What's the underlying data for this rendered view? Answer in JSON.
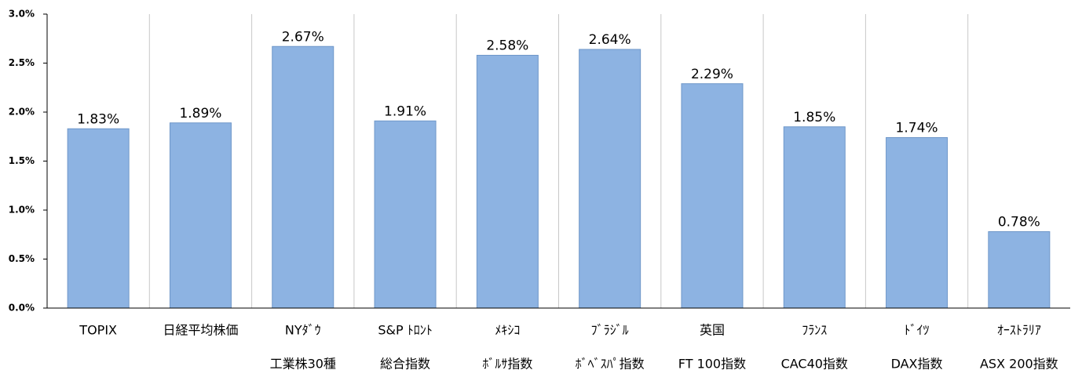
{
  "chart_data": {
    "type": "bar",
    "categories": [
      [
        "TOPIX"
      ],
      [
        "日経平均株価"
      ],
      [
        "NYﾀﾞｳ",
        "工業株30種"
      ],
      [
        "S&P ﾄﾛﾝﾄ",
        "総合指数"
      ],
      [
        "ﾒｷｼｺ",
        "ﾎﾞﾙｻ指数"
      ],
      [
        "ﾌﾞﾗｼﾞﾙ",
        "ﾎﾞﾍﾞｽﾊﾟ指数"
      ],
      [
        "英国",
        "FT 100指数"
      ],
      [
        "ﾌﾗﾝｽ",
        "CAC40指数"
      ],
      [
        "ﾄﾞｲﾂ",
        "DAX指数"
      ],
      [
        "ｵｰｽﾄﾗﾘｱ",
        "ASX 200指数"
      ]
    ],
    "values": [
      1.83,
      1.89,
      2.67,
      1.91,
      2.58,
      2.64,
      2.29,
      1.85,
      1.74,
      0.78
    ],
    "value_labels": [
      "1.83%",
      "1.89%",
      "2.67%",
      "1.91%",
      "2.58%",
      "2.64%",
      "2.29%",
      "1.85%",
      "1.74%",
      "0.78%"
    ],
    "color": "#8db3e2",
    "ylim": [
      0,
      3.0
    ],
    "yticks": [
      {
        "value": 0,
        "label": "0.0%"
      },
      {
        "value": 0.5,
        "label": "0.5%"
      },
      {
        "value": 1.0,
        "label": "1.0%"
      },
      {
        "value": 1.5,
        "label": "1.5%"
      },
      {
        "value": 2.0,
        "label": "2.0%"
      },
      {
        "value": 2.5,
        "label": "2.5%"
      },
      {
        "value": 3.0,
        "label": "3.0%"
      }
    ]
  }
}
